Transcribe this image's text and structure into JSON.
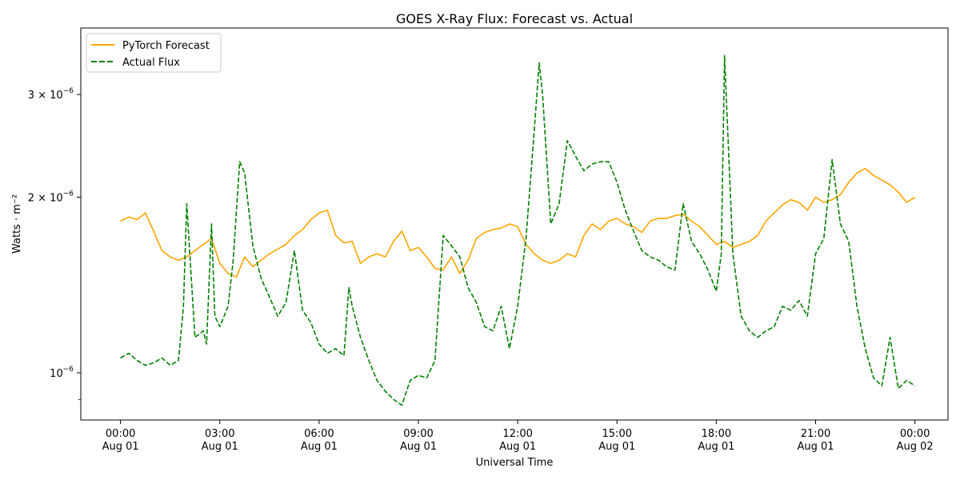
{
  "chart_data": {
    "type": "line",
    "title": "GOES X-Ray Flux: Forecast vs. Actual",
    "xlabel": "Universal Time",
    "ylabel": "Watts · m⁻²",
    "yscale": "log",
    "ylim": [
      8.3e-07,
      3.9e-06
    ],
    "xlim_hours": [
      -1.2,
      25.0
    ],
    "grid": false,
    "legend_position": "top-left",
    "x_ticks": [
      {
        "hour": 0,
        "time": "00:00",
        "date": "Aug 01"
      },
      {
        "hour": 3,
        "time": "03:00",
        "date": "Aug 01"
      },
      {
        "hour": 6,
        "time": "06:00",
        "date": "Aug 01"
      },
      {
        "hour": 9,
        "time": "09:00",
        "date": "Aug 01"
      },
      {
        "hour": 12,
        "time": "12:00",
        "date": "Aug 01"
      },
      {
        "hour": 15,
        "time": "15:00",
        "date": "Aug 01"
      },
      {
        "hour": 18,
        "time": "18:00",
        "date": "Aug 01"
      },
      {
        "hour": 21,
        "time": "21:00",
        "date": "Aug 01"
      },
      {
        "hour": 24,
        "time": "00:00",
        "date": "Aug 02"
      }
    ],
    "y_ticks": [
      {
        "value": 1e-06,
        "base": "10",
        "exp": "−6"
      },
      {
        "value": 2e-06,
        "base": "2 × 10",
        "exp": "−6"
      },
      {
        "value": 3e-06,
        "base": "3 × 10",
        "exp": "−6"
      }
    ],
    "series": [
      {
        "name": "PyTorch Forecast",
        "color": "#ffa500",
        "dash": "solid",
        "x": [
          0,
          0.25,
          0.5,
          0.75,
          1,
          1.25,
          1.5,
          1.75,
          2,
          2.25,
          2.5,
          2.75,
          3,
          3.25,
          3.5,
          3.75,
          4,
          4.25,
          4.5,
          4.75,
          5,
          5.25,
          5.5,
          5.75,
          6,
          6.25,
          6.5,
          6.75,
          7,
          7.25,
          7.5,
          7.75,
          8,
          8.25,
          8.5,
          8.75,
          9,
          9.25,
          9.5,
          9.75,
          10,
          10.25,
          10.5,
          10.75,
          11,
          11.25,
          11.5,
          11.75,
          12,
          12.25,
          12.5,
          12.75,
          13,
          13.25,
          13.5,
          13.75,
          14,
          14.25,
          14.5,
          14.75,
          15,
          15.25,
          15.5,
          15.75,
          16,
          16.25,
          16.5,
          16.75,
          17,
          17.25,
          17.5,
          17.75,
          18,
          18.25,
          18.5,
          18.75,
          19,
          19.25,
          19.5,
          19.75,
          20,
          20.25,
          20.5,
          20.75,
          21,
          21.25,
          21.5,
          21.75,
          22,
          22.25,
          22.5,
          22.75,
          23,
          23.25,
          23.5,
          23.75,
          24
        ],
        "y": [
          1.82e-06,
          1.85e-06,
          1.83e-06,
          1.88e-06,
          1.75e-06,
          1.62e-06,
          1.58e-06,
          1.56e-06,
          1.58e-06,
          1.62e-06,
          1.66e-06,
          1.7e-06,
          1.54e-06,
          1.48e-06,
          1.46e-06,
          1.58e-06,
          1.52e-06,
          1.56e-06,
          1.6e-06,
          1.63e-06,
          1.66e-06,
          1.72e-06,
          1.76e-06,
          1.83e-06,
          1.88e-06,
          1.9e-06,
          1.72e-06,
          1.67e-06,
          1.68e-06,
          1.54e-06,
          1.58e-06,
          1.6e-06,
          1.58e-06,
          1.68e-06,
          1.75e-06,
          1.62e-06,
          1.64e-06,
          1.58e-06,
          1.51e-06,
          1.5e-06,
          1.58e-06,
          1.48e-06,
          1.56e-06,
          1.7e-06,
          1.74e-06,
          1.76e-06,
          1.77e-06,
          1.8e-06,
          1.78e-06,
          1.66e-06,
          1.6e-06,
          1.56e-06,
          1.54e-06,
          1.56e-06,
          1.6e-06,
          1.58e-06,
          1.72e-06,
          1.8e-06,
          1.76e-06,
          1.82e-06,
          1.84e-06,
          1.8e-06,
          1.78e-06,
          1.74e-06,
          1.82e-06,
          1.84e-06,
          1.84e-06,
          1.86e-06,
          1.87e-06,
          1.82e-06,
          1.78e-06,
          1.72e-06,
          1.66e-06,
          1.68e-06,
          1.64e-06,
          1.66e-06,
          1.68e-06,
          1.72e-06,
          1.82e-06,
          1.88e-06,
          1.94e-06,
          1.98e-06,
          1.96e-06,
          1.9e-06,
          2e-06,
          1.96e-06,
          1.98e-06,
          2.02e-06,
          2.12e-06,
          2.2e-06,
          2.24e-06,
          2.18e-06,
          2.14e-06,
          2.1e-06,
          2.04e-06,
          1.96e-06,
          2e-06
        ]
      },
      {
        "name": "Actual Flux",
        "color": "#008000",
        "dash": "dashed",
        "x": [
          0,
          0.25,
          0.5,
          0.75,
          1,
          1.25,
          1.5,
          1.75,
          1.9,
          2.0,
          2.25,
          2.5,
          2.6,
          2.75,
          2.85,
          3.0,
          3.25,
          3.4,
          3.6,
          3.75,
          4,
          4.25,
          4.5,
          4.75,
          5.0,
          5.25,
          5.5,
          5.75,
          6,
          6.25,
          6.5,
          6.75,
          6.9,
          7.0,
          7.25,
          7.5,
          7.75,
          8,
          8.25,
          8.5,
          8.75,
          9,
          9.25,
          9.5,
          9.75,
          10,
          10.25,
          10.5,
          10.75,
          11,
          11.25,
          11.5,
          11.75,
          12,
          12.25,
          12.5,
          12.65,
          12.75,
          13,
          13.25,
          13.5,
          13.75,
          14,
          14.25,
          14.5,
          14.75,
          15,
          15.25,
          15.5,
          15.75,
          16,
          16.25,
          16.5,
          16.75,
          17,
          17.25,
          17.5,
          17.75,
          18,
          18.15,
          18.25,
          18.5,
          18.75,
          19,
          19.25,
          19.5,
          19.75,
          20,
          20.25,
          20.5,
          20.75,
          21,
          21.25,
          21.5,
          21.75,
          22,
          22.25,
          22.5,
          22.75,
          23,
          23.25,
          23.5,
          23.75,
          24
        ],
        "y": [
          1.06e-06,
          1.08e-06,
          1.05e-06,
          1.03e-06,
          1.04e-06,
          1.06e-06,
          1.03e-06,
          1.05e-06,
          1.3e-06,
          1.95e-06,
          1.15e-06,
          1.18e-06,
          1.12e-06,
          1.8e-06,
          1.25e-06,
          1.2e-06,
          1.3e-06,
          1.55e-06,
          2.3e-06,
          2.2e-06,
          1.65e-06,
          1.45e-06,
          1.35e-06,
          1.25e-06,
          1.32e-06,
          1.62e-06,
          1.28e-06,
          1.22e-06,
          1.12e-06,
          1.08e-06,
          1.1e-06,
          1.07e-06,
          1.4e-06,
          1.3e-06,
          1.15e-06,
          1.05e-06,
          9.7e-07,
          9.3e-07,
          9e-07,
          8.8e-07,
          9.7e-07,
          9.9e-07,
          9.8e-07,
          1.05e-06,
          1.72e-06,
          1.65e-06,
          1.58e-06,
          1.4e-06,
          1.32e-06,
          1.2e-06,
          1.18e-06,
          1.3e-06,
          1.1e-06,
          1.3e-06,
          1.7e-06,
          2.6e-06,
          3.4e-06,
          3e-06,
          1.8e-06,
          1.95e-06,
          2.5e-06,
          2.35e-06,
          2.22e-06,
          2.28e-06,
          2.3e-06,
          2.3e-06,
          2.12e-06,
          1.9e-06,
          1.75e-06,
          1.62e-06,
          1.58e-06,
          1.56e-06,
          1.52e-06,
          1.5e-06,
          1.95e-06,
          1.68e-06,
          1.6e-06,
          1.5e-06,
          1.38e-06,
          1.6e-06,
          3.5e-06,
          1.6e-06,
          1.25e-06,
          1.18e-06,
          1.15e-06,
          1.18e-06,
          1.2e-06,
          1.3e-06,
          1.28e-06,
          1.33e-06,
          1.25e-06,
          1.6e-06,
          1.7e-06,
          2.32e-06,
          1.8e-06,
          1.68e-06,
          1.3e-06,
          1.1e-06,
          9.8e-07,
          9.5e-07,
          1.15e-06,
          9.4e-07,
          9.7e-07,
          9.5e-07
        ]
      }
    ]
  }
}
